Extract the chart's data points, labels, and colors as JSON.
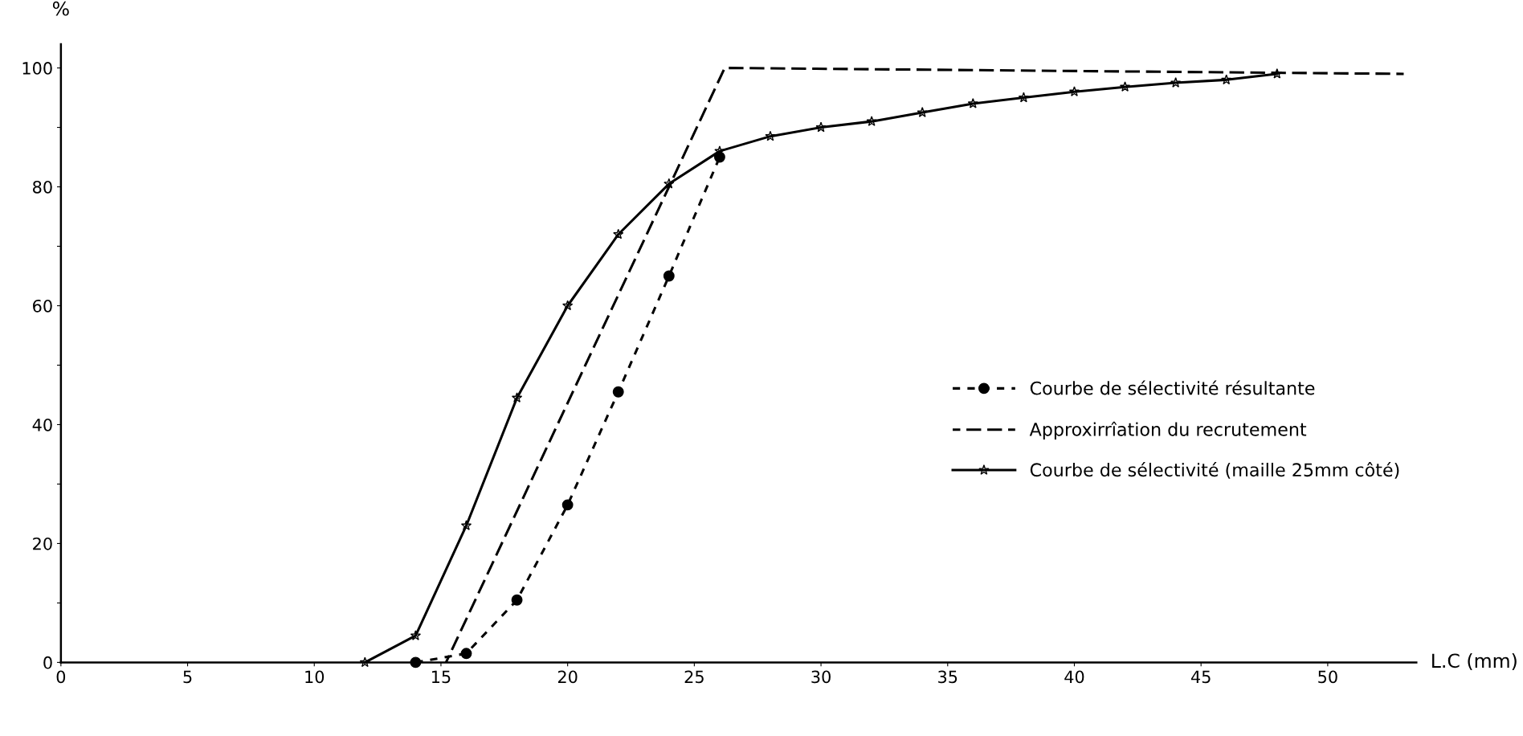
{
  "chart_data": {
    "type": "line",
    "xlabel": "L.C (mm)",
    "ylabel": "%",
    "xlim": [
      0,
      53.5
    ],
    "ylim": [
      0,
      104
    ],
    "xticks": [
      0,
      5,
      10,
      15,
      20,
      25,
      30,
      35,
      40,
      45,
      50
    ],
    "yticks": [
      0,
      {
        "value": 10,
        "label": null
      },
      20,
      {
        "value": 30,
        "label": null
      },
      40,
      {
        "value": 50,
        "label": null
      },
      60,
      {
        "value": 70,
        "label": null
      },
      80,
      {
        "value": 90,
        "label": null
      },
      100
    ],
    "grid": false,
    "legend": "center right",
    "series": [
      {
        "name": "Courbe de sélectivité résultante",
        "color": "#000000",
        "marker": "circle",
        "line_style": "dotted",
        "x": [
          14,
          16,
          18,
          20,
          22,
          24,
          26
        ],
        "values": [
          0,
          1.5,
          10.5,
          26.5,
          45.5,
          65,
          85
        ]
      },
      {
        "name": "Approxirrîation du recrutement",
        "color": "#000000",
        "marker": "none",
        "line_style": "dashed",
        "x": [
          15.2,
          26.2,
          53
        ],
        "values": [
          0,
          100,
          99
        ]
      },
      {
        "name": "Courbe de sélectivité (maille 25mm côté)",
        "color": "#000000",
        "marker": "star",
        "line_style": "solid",
        "x": [
          12,
          14,
          16,
          18,
          20,
          22,
          24,
          26,
          28,
          30,
          32,
          34,
          36,
          38,
          40,
          42,
          44,
          46,
          48
        ],
        "values": [
          0,
          4.5,
          23,
          44.5,
          60,
          72,
          80.5,
          86,
          88.5,
          90,
          91,
          92.5,
          94,
          95,
          96,
          96.8,
          97.5,
          98,
          99
        ]
      }
    ]
  }
}
